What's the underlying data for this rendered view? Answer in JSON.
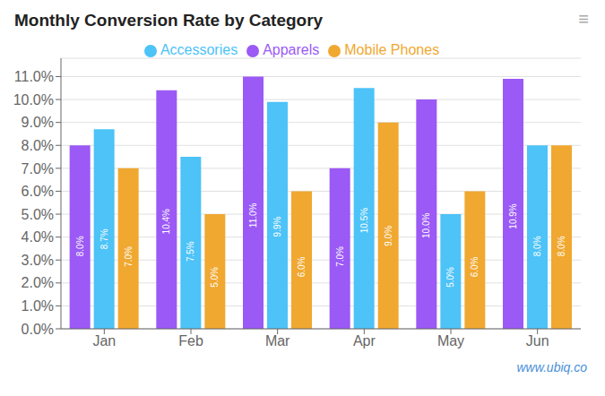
{
  "chart_data": {
    "type": "bar",
    "title": "Monthly Conversion Rate by Category",
    "categories": [
      "Jan",
      "Feb",
      "Mar",
      "Apr",
      "May",
      "Jun"
    ],
    "series": [
      {
        "name": "Apparels",
        "color": "#9b59f5",
        "values": [
          8.0,
          10.4,
          11.0,
          7.0,
          10.0,
          10.9
        ],
        "value_labels": [
          "8.0%",
          "10.4%",
          "11.0%",
          "7.0%",
          "10.0%",
          "10.9%"
        ]
      },
      {
        "name": "Accessories",
        "color": "#4dc3f7",
        "values": [
          8.7,
          7.5,
          9.9,
          10.5,
          5.0,
          8.0
        ],
        "value_labels": [
          "8.7%",
          "7.5%",
          "9.9%",
          "10.5%",
          "5.0%",
          "8.0%"
        ]
      },
      {
        "name": "Mobile Phones",
        "color": "#f0a830",
        "values": [
          7.0,
          5.0,
          6.0,
          9.0,
          6.0,
          8.0
        ],
        "value_labels": [
          "7.0%",
          "5.0%",
          "6.0%",
          "9.0%",
          "6.0%",
          "8.0%"
        ]
      }
    ],
    "ylim": [
      0,
      11.8
    ],
    "yticks": [
      {
        "value": 0.0,
        "label": "0.0%"
      },
      {
        "value": 1.0,
        "label": "1.0%"
      },
      {
        "value": 2.0,
        "label": "2.0%"
      },
      {
        "value": 3.0,
        "label": "3.0%"
      },
      {
        "value": 4.0,
        "label": "4.0%"
      },
      {
        "value": 5.0,
        "label": "5.0%"
      },
      {
        "value": 6.0,
        "label": "6.0%"
      },
      {
        "value": 7.0,
        "label": "7.0%"
      },
      {
        "value": 8.0,
        "label": "8.0%"
      },
      {
        "value": 9.0,
        "label": "9.0%"
      },
      {
        "value": 10.0,
        "label": "10.0%"
      },
      {
        "value": 11.0,
        "label": "11.0%"
      }
    ],
    "grid": true,
    "legend": "top",
    "data_labels": true,
    "annotations": [
      "www.ubiq.co",
      "≡"
    ]
  }
}
